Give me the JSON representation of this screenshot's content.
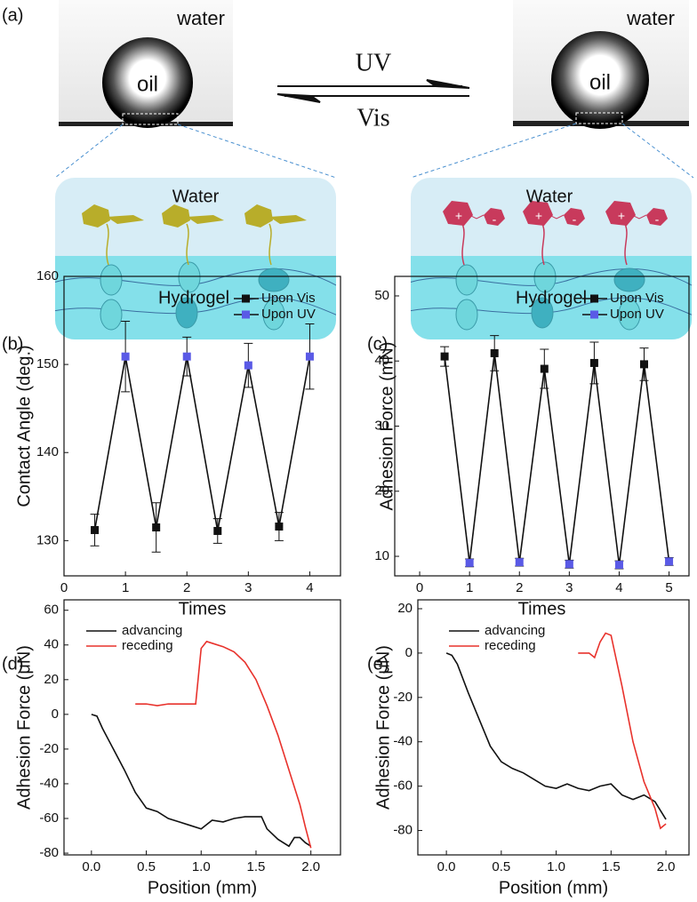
{
  "panel_a": {
    "label": "(a)",
    "left_medium": "water",
    "left_drop": "oil",
    "right_medium": "water",
    "right_drop": "oil",
    "forward": "UV",
    "backward": "Vis",
    "left_box": {
      "top": "Water",
      "bottom": "Hydrogel"
    },
    "right_box": {
      "top": "Water",
      "bottom": "Hydrogel"
    },
    "plus": "+",
    "minus": "-"
  },
  "chart_data": [
    {
      "type": "line",
      "label": "(b)",
      "x_label": "Times",
      "y_label": "Contact Angle (deg.)",
      "x": [
        0.5,
        1,
        1.5,
        2,
        2.5,
        3,
        3.5,
        4
      ],
      "series": [
        {
          "name": "Upon Vis",
          "color": "#111111",
          "values": [
            131.2,
            null,
            131.5,
            null,
            131.1,
            null,
            131.6,
            null
          ],
          "errors": [
            1.8,
            null,
            2.8,
            null,
            1.4,
            null,
            1.6,
            null
          ]
        },
        {
          "name": "Upon UV",
          "color": "#5a5ae6",
          "values": [
            null,
            150.9,
            null,
            150.9,
            null,
            149.9,
            null,
            150.9
          ],
          "errors": [
            null,
            4,
            null,
            2.2,
            null,
            2.5,
            null,
            3.7
          ]
        }
      ],
      "xlim": [
        0,
        4.5
      ],
      "xticks": [
        0,
        1,
        2,
        3,
        4
      ],
      "ylim": [
        126,
        160
      ],
      "yticks": [
        130,
        140,
        150,
        160
      ],
      "legend": "upper right"
    },
    {
      "type": "line",
      "label": "(c)",
      "x_label": "Times",
      "y_label": "Adhesion Force (mN)",
      "x": [
        0.5,
        1,
        1.5,
        2,
        2.5,
        3,
        3.5,
        4,
        4.5,
        5
      ],
      "series": [
        {
          "name": "Upon Vis",
          "color": "#111111",
          "values": [
            40.7,
            null,
            41.2,
            null,
            38.8,
            null,
            39.7,
            null,
            39.5,
            null
          ],
          "errors": [
            1.5,
            null,
            2.7,
            null,
            3,
            null,
            3.2,
            null,
            2.5,
            null
          ]
        },
        {
          "name": "Upon UV",
          "color": "#5a5ae6",
          "values": [
            null,
            9,
            null,
            9.1,
            null,
            8.8,
            null,
            8.7,
            null,
            9.2
          ],
          "errors": [
            null,
            0.6,
            null,
            0.6,
            null,
            0.6,
            null,
            0.6,
            null,
            0.6
          ]
        }
      ],
      "xlim": [
        -0.5,
        5.4
      ],
      "xticks": [
        0,
        1,
        2,
        3,
        4,
        5
      ],
      "ylim": [
        7,
        53
      ],
      "yticks": [
        10,
        20,
        30,
        40,
        50
      ],
      "legend": "upper right"
    },
    {
      "type": "curve",
      "label": "(d)",
      "x_label": "Position (mm)",
      "y_label": "Adhesion Force (μN)",
      "series": [
        {
          "name": "advancing",
          "color": "#111111",
          "x": [
            0,
            0.05,
            0.1,
            0.2,
            0.3,
            0.4,
            0.5,
            0.6,
            0.7,
            0.8,
            0.9,
            1.0,
            1.1,
            1.2,
            1.3,
            1.4,
            1.5,
            1.55,
            1.6,
            1.7,
            1.8,
            1.85,
            1.9,
            1.95,
            2.0
          ],
          "values": [
            0,
            -1,
            -8,
            -20,
            -32,
            -45,
            -54,
            -56,
            -60,
            -62,
            -64,
            -66,
            -61,
            -62,
            -60,
            -59,
            -59,
            -59,
            -66,
            -72,
            -76,
            -71,
            -71,
            -74,
            -76
          ]
        },
        {
          "name": "receding",
          "color": "#e8322c",
          "x": [
            0.4,
            0.5,
            0.6,
            0.7,
            0.8,
            0.95,
            1.0,
            1.05,
            1.1,
            1.2,
            1.3,
            1.4,
            1.5,
            1.6,
            1.7,
            1.8,
            1.9,
            1.95,
            2.0
          ],
          "values": [
            6,
            6,
            5,
            6,
            6,
            6,
            38,
            42,
            41,
            39,
            36,
            30,
            20,
            5,
            -12,
            -32,
            -52,
            -65,
            -77
          ]
        }
      ],
      "xlim": [
        -0.25,
        2.27
      ],
      "xticks": [
        "0.0",
        "0.5",
        "1.0",
        "1.5",
        "2.0"
      ],
      "ylim": [
        -81,
        66
      ],
      "yticks": [
        -80,
        -60,
        -40,
        -20,
        0,
        20,
        40,
        60
      ],
      "legend": "upper left"
    },
    {
      "type": "curve",
      "label": "(e)",
      "x_label": "Position (mm)",
      "y_label": "Adhesion Force (μN)",
      "series": [
        {
          "name": "advancing",
          "color": "#111111",
          "x": [
            0,
            0.05,
            0.1,
            0.2,
            0.3,
            0.4,
            0.5,
            0.6,
            0.7,
            0.8,
            0.9,
            1.0,
            1.1,
            1.2,
            1.3,
            1.4,
            1.5,
            1.6,
            1.7,
            1.8,
            1.9,
            2.0
          ],
          "values": [
            0,
            -1,
            -5,
            -18,
            -30,
            -42,
            -49,
            -52,
            -54,
            -57,
            -60,
            -61,
            -59,
            -61,
            -62,
            -60,
            -59,
            -64,
            -66,
            -64,
            -67,
            -75
          ]
        },
        {
          "name": "receding",
          "color": "#e8322c",
          "x": [
            1.2,
            1.3,
            1.35,
            1.4,
            1.45,
            1.5,
            1.6,
            1.7,
            1.8,
            1.9,
            1.95,
            2.0
          ],
          "values": [
            0,
            0,
            -2,
            5,
            9,
            8,
            -15,
            -40,
            -58,
            -70,
            -79,
            -77
          ]
        }
      ],
      "xlim": [
        -0.26,
        2.21
      ],
      "xticks": [
        "0.0",
        "0.5",
        "1.0",
        "1.5",
        "2.0"
      ],
      "ylim": [
        -91,
        24
      ],
      "yticks": [
        -80,
        -60,
        -40,
        -20,
        0,
        20
      ],
      "legend": "upper left"
    }
  ]
}
